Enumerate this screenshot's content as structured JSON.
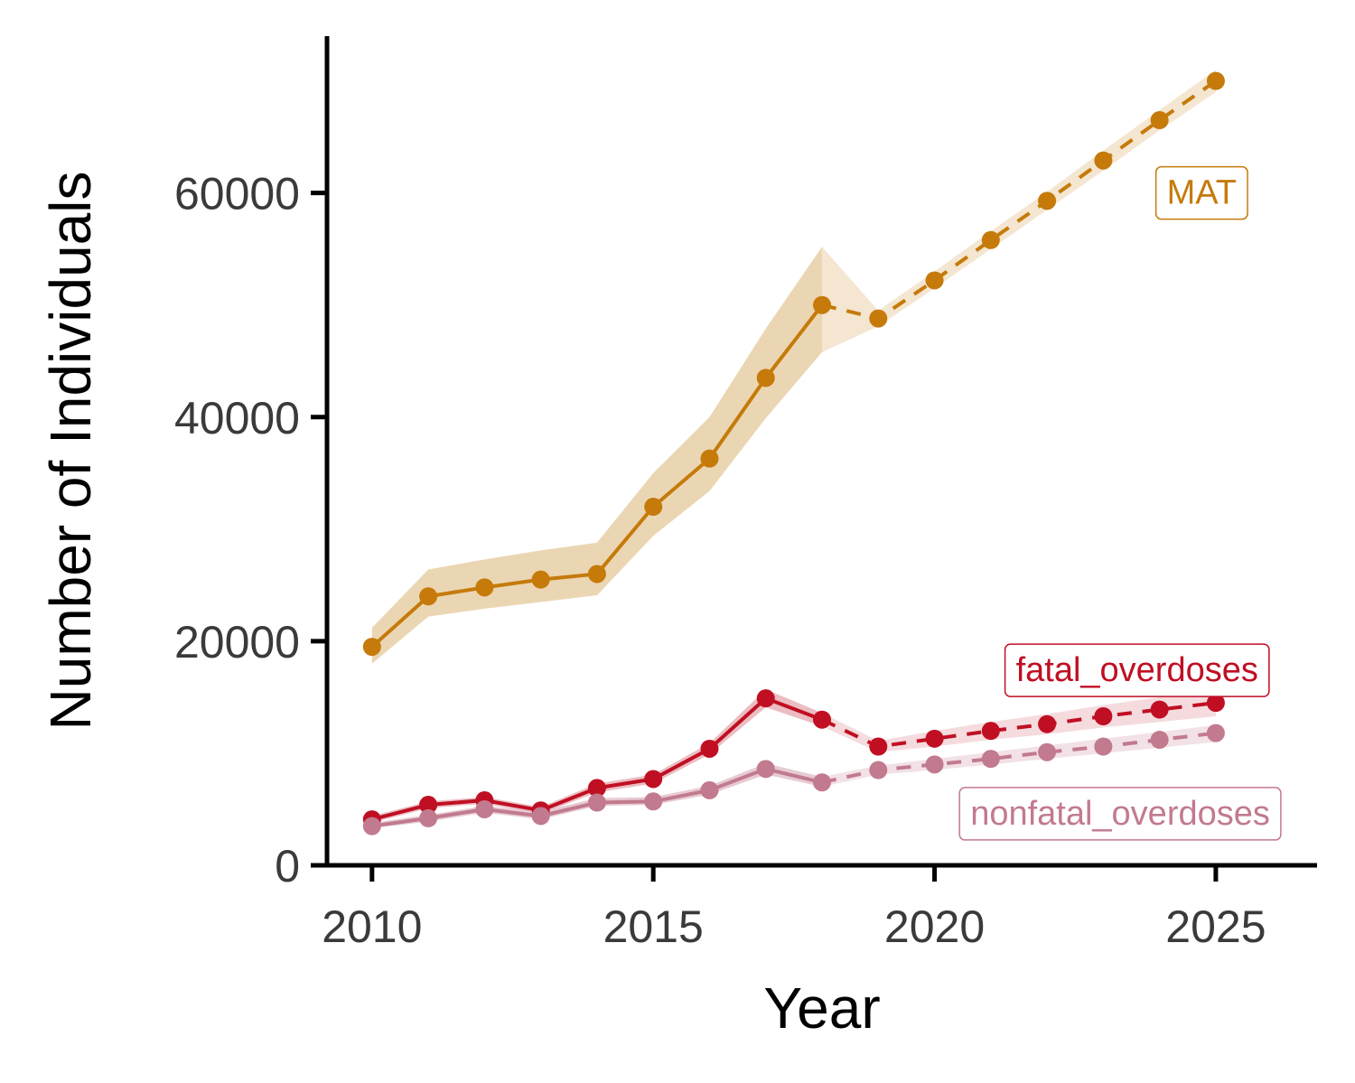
{
  "chart_data": {
    "type": "line",
    "title": "",
    "xlabel": "Year",
    "ylabel": "Number of Individuals",
    "xlim": [
      2009.2,
      2026.8
    ],
    "ylim": [
      0,
      74000
    ],
    "x_ticks": [
      2010,
      2015,
      2020,
      2025
    ],
    "y_ticks": [
      0,
      20000,
      40000,
      60000
    ],
    "observed_until": 2018,
    "grid": false,
    "legend": "direct labels (boxed) next to each series",
    "series": [
      {
        "name": "MAT",
        "color": "#C57A0A",
        "band_color": "#E8CFA6",
        "forecast_band_color": "#F3E3CC",
        "x": [
          2010,
          2011,
          2012,
          2013,
          2014,
          2015,
          2016,
          2017,
          2018,
          2019,
          2020,
          2021,
          2022,
          2023,
          2024,
          2025
        ],
        "values": [
          19500,
          24000,
          24800,
          25500,
          26000,
          32000,
          36300,
          43500,
          50000,
          48800,
          52200,
          55800,
          59300,
          62900,
          66500,
          70000
        ],
        "lower": [
          18000,
          22200,
          22900,
          23500,
          24100,
          29400,
          33400,
          39900,
          45800,
          48100,
          51500,
          55000,
          58500,
          62000,
          65600,
          69000
        ],
        "upper": [
          21200,
          26400,
          27300,
          28100,
          28800,
          35000,
          40000,
          47900,
          55200,
          49500,
          53000,
          56600,
          60100,
          63800,
          67400,
          71000
        ]
      },
      {
        "name": "fatal_overdoses",
        "color": "#C00F23",
        "band_color": "#E7B2B7",
        "forecast_band_color": "#F4D7DA",
        "x": [
          2010,
          2011,
          2012,
          2013,
          2014,
          2015,
          2016,
          2017,
          2018,
          2019,
          2020,
          2021,
          2022,
          2023,
          2024,
          2025
        ],
        "values": [
          4100,
          5400,
          5800,
          4900,
          6900,
          7700,
          10400,
          14900,
          13000,
          10600,
          11300,
          12000,
          12600,
          13300,
          13900,
          14500
        ],
        "lower": [
          3800,
          5100,
          5500,
          4600,
          6500,
          7300,
          9900,
          14100,
          12400,
          10100,
          10600,
          11200,
          11700,
          12300,
          12800,
          13300
        ],
        "upper": [
          4400,
          5700,
          6100,
          5200,
          7300,
          8100,
          10900,
          15700,
          13600,
          11100,
          12000,
          12800,
          13500,
          14300,
          15000,
          15700
        ]
      },
      {
        "name": "nonfatal_overdoses",
        "color": "#C27A8E",
        "band_color": "#E3C2CB",
        "forecast_band_color": "#F1DEE3",
        "x": [
          2010,
          2011,
          2012,
          2013,
          2014,
          2015,
          2016,
          2017,
          2018,
          2019,
          2020,
          2021,
          2022,
          2023,
          2024,
          2025
        ],
        "values": [
          3500,
          4200,
          5000,
          4400,
          5600,
          5700,
          6700,
          8600,
          7400,
          8500,
          9000,
          9500,
          10100,
          10600,
          11200,
          11800
        ],
        "lower": [
          3300,
          3900,
          4700,
          4100,
          5300,
          5400,
          6300,
          8100,
          7000,
          8100,
          8500,
          9000,
          9500,
          10000,
          10500,
          11000
        ],
        "upper": [
          3800,
          4500,
          5300,
          4800,
          6000,
          6100,
          7100,
          9100,
          7900,
          8900,
          9500,
          10100,
          10700,
          11300,
          11900,
          12500
        ]
      }
    ],
    "annotations": [
      {
        "text": "MAT",
        "series": "MAT",
        "x": 2024.75,
        "y": 60000
      },
      {
        "text": "fatal_overdoses",
        "series": "fatal_overdoses",
        "x": 2023.6,
        "y": 17400
      },
      {
        "text": "nonfatal_overdoses",
        "series": "nonfatal_overdoses",
        "x": 2023.3,
        "y": 4600
      }
    ]
  }
}
